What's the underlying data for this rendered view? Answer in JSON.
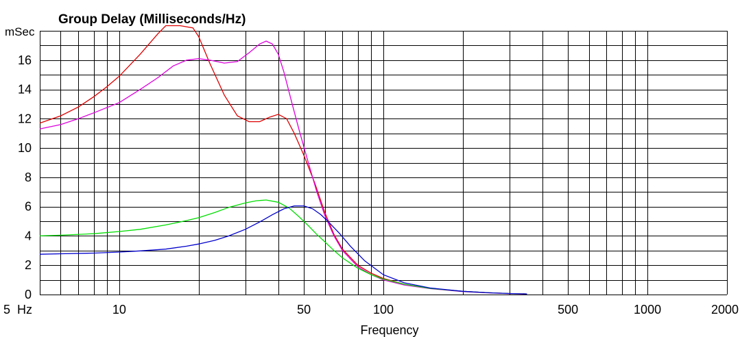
{
  "chart_data": {
    "type": "line",
    "title": "Group Delay (Milliseconds/Hz)",
    "ylabel": "mSec",
    "xlabel": "Frequency",
    "xscale": "log",
    "xlim": [
      5,
      2000
    ],
    "ylim": [
      0,
      18
    ],
    "grid": true,
    "x_tick_labels": [
      {
        "value": 5,
        "label": "5  Hz"
      },
      {
        "value": 10,
        "label": "10"
      },
      {
        "value": 50,
        "label": "50"
      },
      {
        "value": 100,
        "label": "100"
      },
      {
        "value": 500,
        "label": "500"
      },
      {
        "value": 1000,
        "label": "1000"
      },
      {
        "value": 2000,
        "label": "2000"
      }
    ],
    "y_tick_labels": [
      0,
      2,
      4,
      6,
      8,
      10,
      12,
      14,
      16
    ],
    "series": [
      {
        "color": "#dd0000",
        "points": [
          [
            5,
            11.7
          ],
          [
            6,
            12.2
          ],
          [
            7,
            12.8
          ],
          [
            8,
            13.5
          ],
          [
            9,
            14.2
          ],
          [
            10,
            14.9
          ],
          [
            12,
            16.4
          ],
          [
            14,
            17.8
          ],
          [
            15,
            18.5
          ],
          [
            17,
            18.8
          ],
          [
            19,
            18.2
          ],
          [
            20,
            17.6
          ],
          [
            22,
            15.8
          ],
          [
            25,
            13.6
          ],
          [
            28,
            12.2
          ],
          [
            31,
            11.8
          ],
          [
            34,
            11.8
          ],
          [
            37,
            12.1
          ],
          [
            40,
            12.3
          ],
          [
            43,
            12.0
          ],
          [
            46,
            11.0
          ],
          [
            50,
            9.5
          ],
          [
            55,
            7.6
          ],
          [
            60,
            5.6
          ],
          [
            65,
            4.1
          ],
          [
            70,
            3.1
          ],
          [
            80,
            2.0
          ],
          [
            90,
            1.45
          ],
          [
            100,
            1.1
          ],
          [
            120,
            0.7
          ],
          [
            150,
            0.42
          ],
          [
            200,
            0.22
          ],
          [
            250,
            0.12
          ],
          [
            300,
            0.07
          ],
          [
            350,
            0.04
          ]
        ]
      },
      {
        "color": "#dd00dd",
        "points": [
          [
            5,
            11.3
          ],
          [
            6,
            11.6
          ],
          [
            7,
            12.0
          ],
          [
            8,
            12.4
          ],
          [
            10,
            13.1
          ],
          [
            12,
            14.0
          ],
          [
            14,
            14.8
          ],
          [
            16,
            15.6
          ],
          [
            18,
            16.0
          ],
          [
            20,
            16.1
          ],
          [
            22,
            16.0
          ],
          [
            25,
            15.8
          ],
          [
            28,
            15.9
          ],
          [
            31,
            16.5
          ],
          [
            34,
            17.1
          ],
          [
            36,
            17.3
          ],
          [
            38,
            17.1
          ],
          [
            40,
            16.4
          ],
          [
            42,
            15.2
          ],
          [
            45,
            13.1
          ],
          [
            48,
            11.2
          ],
          [
            52,
            9.0
          ],
          [
            56,
            7.0
          ],
          [
            60,
            5.4
          ],
          [
            65,
            4.0
          ],
          [
            70,
            3.0
          ],
          [
            80,
            1.9
          ],
          [
            90,
            1.35
          ],
          [
            100,
            1.0
          ],
          [
            120,
            0.65
          ],
          [
            150,
            0.4
          ],
          [
            200,
            0.2
          ],
          [
            250,
            0.11
          ],
          [
            300,
            0.06
          ],
          [
            350,
            0.03
          ]
        ]
      },
      {
        "color": "#00dd00",
        "points": [
          [
            5,
            4.0
          ],
          [
            6,
            4.05
          ],
          [
            8,
            4.15
          ],
          [
            10,
            4.3
          ],
          [
            12,
            4.45
          ],
          [
            15,
            4.75
          ],
          [
            18,
            5.05
          ],
          [
            20,
            5.25
          ],
          [
            23,
            5.6
          ],
          [
            26,
            5.95
          ],
          [
            30,
            6.25
          ],
          [
            33,
            6.4
          ],
          [
            36,
            6.45
          ],
          [
            40,
            6.3
          ],
          [
            44,
            5.9
          ],
          [
            48,
            5.3
          ],
          [
            52,
            4.7
          ],
          [
            56,
            4.1
          ],
          [
            60,
            3.6
          ],
          [
            65,
            3.0
          ],
          [
            70,
            2.5
          ],
          [
            80,
            1.8
          ],
          [
            90,
            1.35
          ],
          [
            100,
            1.05
          ],
          [
            120,
            0.7
          ],
          [
            150,
            0.42
          ],
          [
            200,
            0.22
          ],
          [
            250,
            0.12
          ],
          [
            300,
            0.07
          ],
          [
            350,
            0.04
          ]
        ]
      },
      {
        "color": "#0000cc",
        "points": [
          [
            5,
            2.75
          ],
          [
            6,
            2.78
          ],
          [
            8,
            2.83
          ],
          [
            10,
            2.9
          ],
          [
            12,
            2.98
          ],
          [
            15,
            3.1
          ],
          [
            18,
            3.3
          ],
          [
            20,
            3.45
          ],
          [
            23,
            3.7
          ],
          [
            26,
            4.0
          ],
          [
            30,
            4.45
          ],
          [
            34,
            4.95
          ],
          [
            38,
            5.45
          ],
          [
            42,
            5.85
          ],
          [
            46,
            6.05
          ],
          [
            50,
            6.05
          ],
          [
            54,
            5.85
          ],
          [
            58,
            5.45
          ],
          [
            62,
            4.95
          ],
          [
            68,
            4.2
          ],
          [
            75,
            3.3
          ],
          [
            85,
            2.3
          ],
          [
            100,
            1.35
          ],
          [
            120,
            0.8
          ],
          [
            150,
            0.45
          ],
          [
            200,
            0.22
          ],
          [
            250,
            0.12
          ],
          [
            300,
            0.07
          ],
          [
            350,
            0.04
          ]
        ]
      }
    ]
  }
}
